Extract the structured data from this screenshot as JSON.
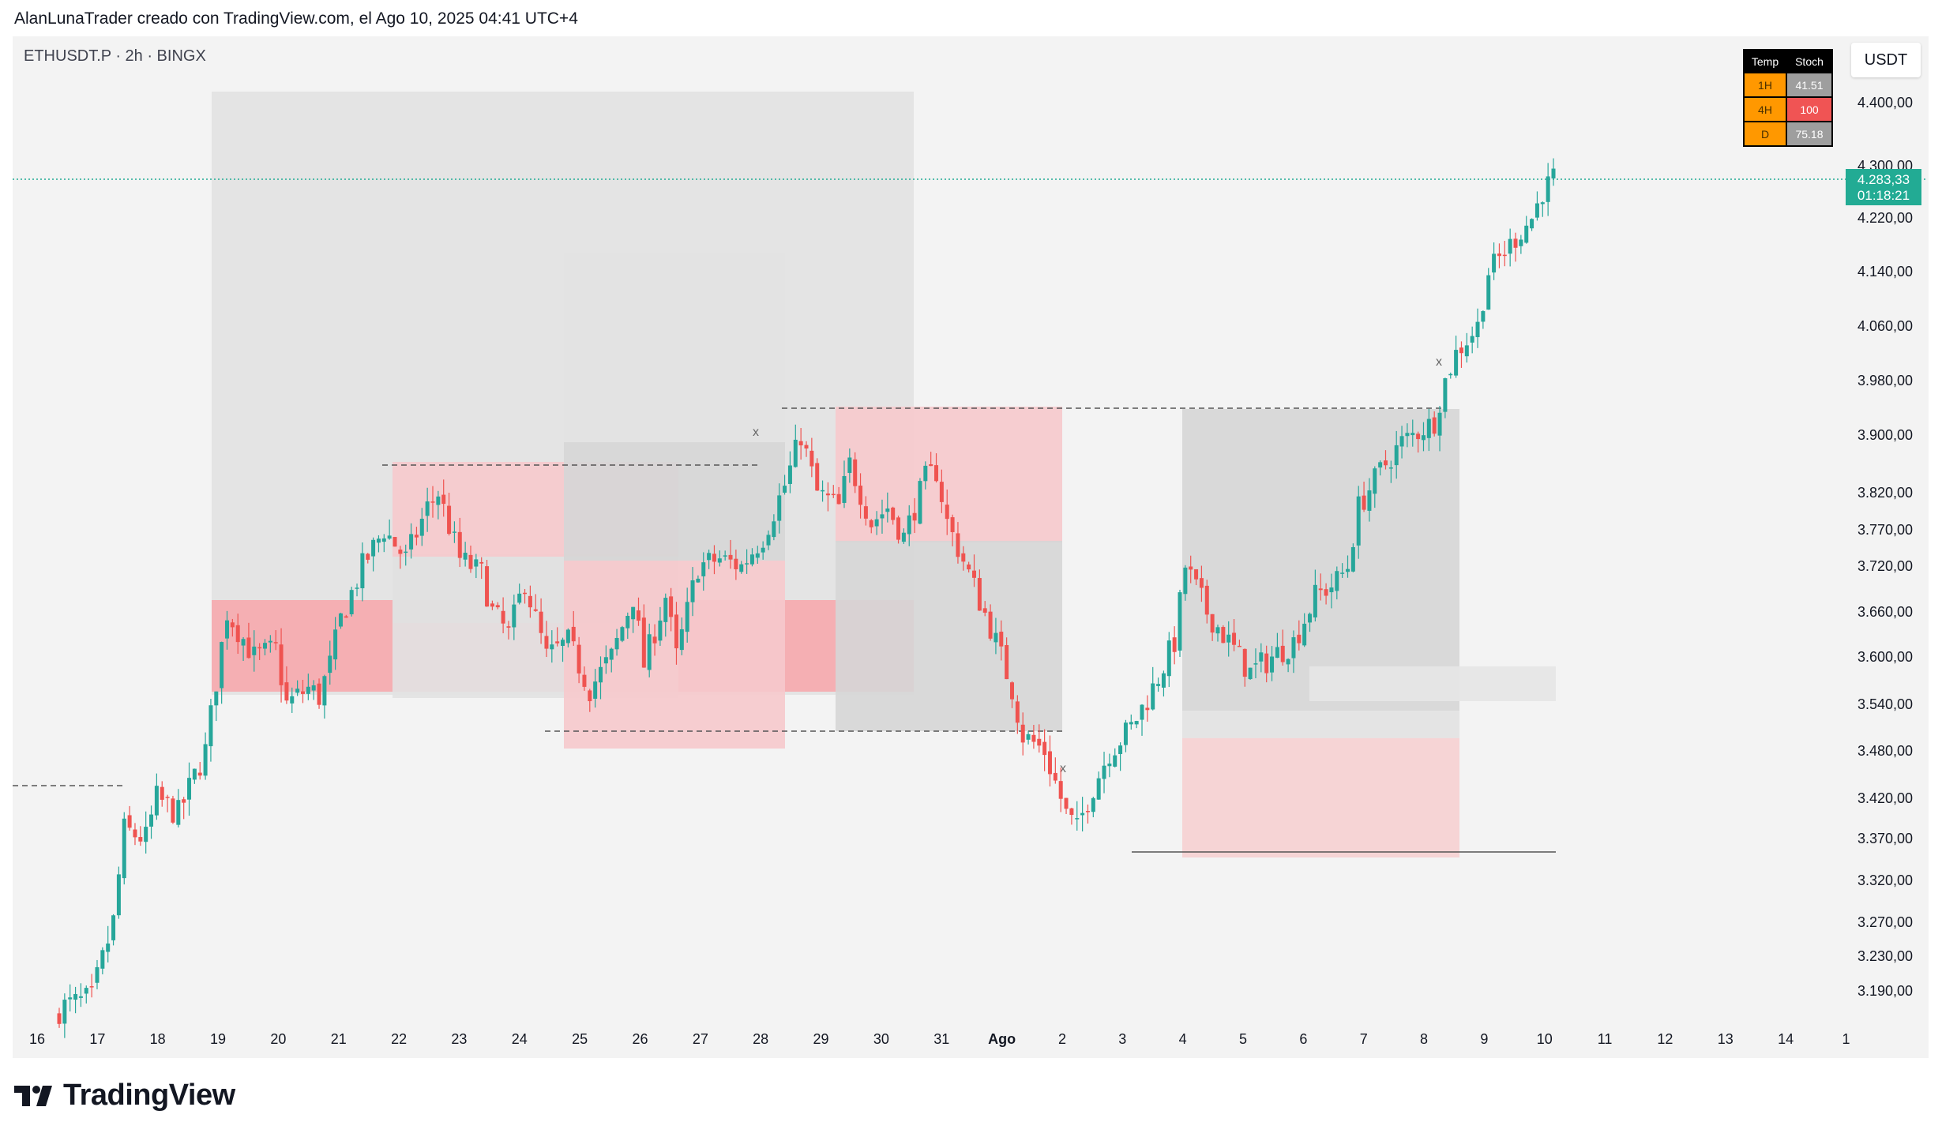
{
  "header": {
    "title": "AlanLunaTrader creado con TradingView.com, el Ago 10, 2025 04:41 UTC+4"
  },
  "symbol": {
    "label": "ETHUSDT.P · 2h · BINGX"
  },
  "currency": "USDT",
  "stoch_table": {
    "headers": [
      "Temp",
      "Stoch"
    ],
    "rows": [
      {
        "tf": "1H",
        "value": "41.51",
        "tf_color": "#ff9800",
        "value_color": "#9e9e9e"
      },
      {
        "tf": "4H",
        "value": "100",
        "tf_color": "#ff9800",
        "value_color": "#f05454"
      },
      {
        "tf": "D",
        "value": "75.18",
        "tf_color": "#ff9800",
        "value_color": "#9e9e9e"
      }
    ]
  },
  "price_tag": {
    "price": "4.283,33",
    "countdown": "01:18:21",
    "color": "#22ab94"
  },
  "footer": {
    "brand": "TradingView"
  },
  "colors": {
    "up": "#26a69a",
    "down": "#ef5350",
    "bg": "#f3f3f3"
  },
  "chart_data": {
    "type": "candlestick",
    "ylim": [
      3150,
      4450
    ],
    "y_ticks": [
      "4.400,00",
      "4.300,00",
      "4.220,00",
      "4.140,00",
      "4.060,00",
      "3.980,00",
      "3.900,00",
      "3.820,00",
      "3.770,00",
      "3.720,00",
      "3.660,00",
      "3.600,00",
      "3.540,00",
      "3.480,00",
      "3.420,00",
      "3.370,00",
      "3.320,00",
      "3.270,00",
      "3.230,00",
      "3.190,00"
    ],
    "x_ticks": [
      "16",
      "17",
      "18",
      "19",
      "20",
      "21",
      "22",
      "23",
      "24",
      "25",
      "26",
      "27",
      "28",
      "29",
      "30",
      "31",
      "Ago",
      "2",
      "3",
      "4",
      "5",
      "6",
      "7",
      "8",
      "9",
      "10",
      "11",
      "12",
      "13",
      "14",
      "1"
    ],
    "last_price": 4283.33,
    "path": [
      [
        0,
        3170
      ],
      [
        6,
        3180
      ],
      [
        10,
        3270
      ],
      [
        12,
        3380
      ],
      [
        16,
        3370
      ],
      [
        18,
        3420
      ],
      [
        22,
        3400
      ],
      [
        27,
        3480
      ],
      [
        31,
        3660
      ],
      [
        36,
        3600
      ],
      [
        40,
        3610
      ],
      [
        42,
        3540
      ],
      [
        46,
        3560
      ],
      [
        48,
        3550
      ],
      [
        50,
        3590
      ],
      [
        52,
        3650
      ],
      [
        56,
        3720
      ],
      [
        60,
        3770
      ],
      [
        64,
        3730
      ],
      [
        68,
        3800
      ],
      [
        70,
        3820
      ],
      [
        74,
        3730
      ],
      [
        78,
        3710
      ],
      [
        80,
        3660
      ],
      [
        83,
        3630
      ],
      [
        86,
        3700
      ],
      [
        90,
        3600
      ],
      [
        94,
        3620
      ],
      [
        98,
        3560
      ],
      [
        102,
        3600
      ],
      [
        106,
        3680
      ],
      [
        108,
        3590
      ],
      [
        112,
        3680
      ],
      [
        114,
        3600
      ],
      [
        118,
        3720
      ],
      [
        122,
        3730
      ],
      [
        126,
        3720
      ],
      [
        130,
        3760
      ],
      [
        134,
        3830
      ],
      [
        137,
        3900
      ],
      [
        140,
        3820
      ],
      [
        144,
        3800
      ],
      [
        146,
        3860
      ],
      [
        150,
        3780
      ],
      [
        153,
        3800
      ],
      [
        156,
        3760
      ],
      [
        160,
        3840
      ],
      [
        162,
        3850
      ],
      [
        164,
        3780
      ],
      [
        168,
        3710
      ],
      [
        172,
        3640
      ],
      [
        176,
        3560
      ],
      [
        178,
        3500
      ],
      [
        182,
        3480
      ],
      [
        186,
        3400
      ],
      [
        188,
        3380
      ],
      [
        190,
        3420
      ],
      [
        194,
        3480
      ],
      [
        198,
        3510
      ],
      [
        202,
        3560
      ],
      [
        206,
        3620
      ],
      [
        208,
        3720
      ],
      [
        212,
        3660
      ],
      [
        216,
        3620
      ],
      [
        220,
        3580
      ],
      [
        224,
        3600
      ],
      [
        228,
        3620
      ],
      [
        232,
        3680
      ],
      [
        236,
        3700
      ],
      [
        238,
        3720
      ],
      [
        240,
        3800
      ],
      [
        244,
        3850
      ],
      [
        248,
        3890
      ],
      [
        252,
        3910
      ],
      [
        254,
        3920
      ],
      [
        256,
        3980
      ],
      [
        258,
        4020
      ],
      [
        262,
        4060
      ],
      [
        264,
        4140
      ],
      [
        268,
        4180
      ],
      [
        272,
        4220
      ],
      [
        274,
        4260
      ],
      [
        276,
        4283
      ]
    ]
  }
}
